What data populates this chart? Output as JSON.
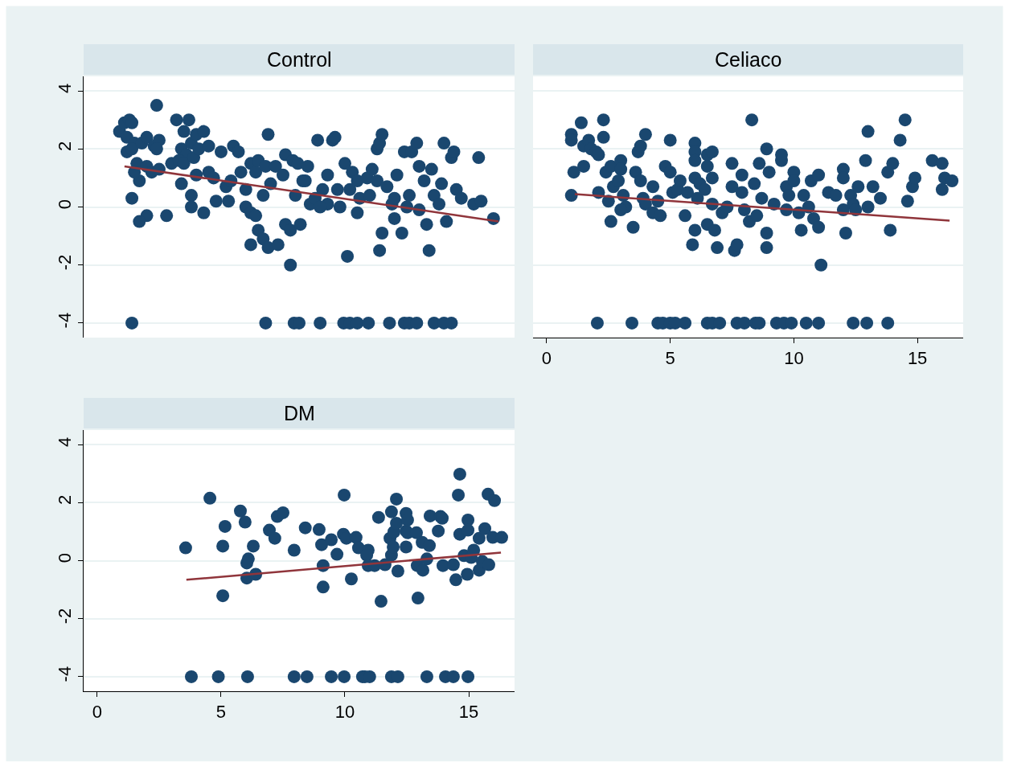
{
  "chart_data": [
    {
      "type": "scatter",
      "title": "Control",
      "grid": "y",
      "tick_labels": "y",
      "xlim": [
        -0.55,
        16.85
      ],
      "ylim": [
        -4.5,
        4.5
      ],
      "xticks": [
        0,
        5,
        10,
        15
      ],
      "yticks": [
        -4,
        -2,
        0,
        2,
        4
      ],
      "series": [
        {
          "color": "#1a476f",
          "marker": "circle",
          "x": [
            0.9,
            1.1,
            1.3,
            1.4,
            1.2,
            1.5,
            1.2,
            1.4,
            1.8,
            1.6,
            1.7,
            1.4,
            1.5,
            2.0,
            1.7,
            2.4,
            2.0,
            2.3,
            2.5,
            2.4,
            2.0,
            2.2,
            2.5,
            2.8,
            3.0,
            3.2,
            3.5,
            3.7,
            3.4,
            3.6,
            3.8,
            4.0,
            3.3,
            3.5,
            3.9,
            4.1,
            4.3,
            4.5,
            3.4,
            3.8,
            3.8,
            4.3,
            4.0,
            4.5,
            4.7,
            4.8,
            5.0,
            5.2,
            5.3,
            5.5,
            5.7,
            5.8,
            5.4,
            6.0,
            6.2,
            6.4,
            6.5,
            6.8,
            6.0,
            6.2,
            6.4,
            6.2,
            6.5,
            6.7,
            6.9,
            6.7,
            6.9,
            7.0,
            7.2,
            7.5,
            7.3,
            7.6,
            7.8,
            7.8,
            7.6,
            7.9,
            8.1,
            8.0,
            8.3,
            8.2,
            8.5,
            8.6,
            8.8,
            8.9,
            9.1,
            9.3,
            9.5,
            9.6,
            9.3,
            9.7,
            9.8,
            10.0,
            10.2,
            10.1,
            10.3,
            10.5,
            10.6,
            10.9,
            11.1,
            11.0,
            11.3,
            11.4,
            11.5,
            11.3,
            11.5,
            11.4,
            11.7,
            11.9,
            12.1,
            12.3,
            12.4,
            12.7,
            12.9,
            12.6,
            13.0,
            13.0,
            13.2,
            13.3,
            13.4,
            13.5,
            13.6,
            13.9,
            14.0,
            14.1,
            14.3,
            14.4,
            14.5,
            14.7,
            15.2,
            15.4,
            15.5,
            16.0,
            12.0,
            10.5,
            9.0,
            8.4,
            12.5,
            12.0,
            13.8,
            1.4,
            6.8,
            7.95,
            8.15,
            9.0,
            9.95,
            10.2,
            10.5,
            10.95,
            11.8,
            12.4,
            12.6,
            12.9,
            13.6,
            14.0,
            14.3
          ],
          "values": [
            2.6,
            2.9,
            3.0,
            2.9,
            2.4,
            2.2,
            1.9,
            2.0,
            2.2,
            1.5,
            0.9,
            0.3,
            1.2,
            -0.3,
            -0.5,
            3.5,
            2.4,
            2.1,
            2.3,
            2.0,
            1.4,
            1.2,
            1.3,
            -0.3,
            1.5,
            3.0,
            2.6,
            3.0,
            2.0,
            1.8,
            2.2,
            2.5,
            1.6,
            1.5,
            1.7,
            2.0,
            2.6,
            2.1,
            0.8,
            0.4,
            0.0,
            -0.2,
            1.1,
            1.2,
            1.0,
            0.2,
            1.9,
            0.7,
            0.2,
            2.1,
            1.9,
            1.2,
            0.9,
            0.6,
            1.5,
            1.2,
            1.6,
            1.4,
            0.0,
            -0.2,
            -0.3,
            -1.3,
            -0.8,
            -1.1,
            -1.4,
            0.4,
            2.5,
            0.8,
            1.4,
            1.1,
            -1.3,
            -0.6,
            -0.8,
            -2.0,
            1.8,
            1.6,
            1.5,
            0.4,
            0.9,
            -0.6,
            1.4,
            0.1,
            0.3,
            2.3,
            0.6,
            1.1,
            2.3,
            2.4,
            0.1,
            0.6,
            0.0,
            1.5,
            0.6,
            -1.7,
            1.2,
            0.9,
            0.3,
            1.0,
            1.3,
            0.4,
            2.0,
            2.2,
            2.5,
            0.9,
            -0.9,
            -1.5,
            0.7,
            0.1,
            1.1,
            -0.9,
            1.9,
            1.9,
            2.2,
            0.4,
            1.4,
            -0.1,
            0.9,
            -0.6,
            -1.5,
            1.3,
            0.4,
            0.8,
            2.2,
            -0.5,
            1.7,
            1.9,
            0.6,
            0.3,
            0.1,
            1.7,
            0.2,
            -0.4,
            0.3,
            -0.2,
            0.0,
            0.9,
            0.0,
            -0.4,
            0.1,
            -4,
            -4,
            -4,
            -4,
            -4,
            -4,
            -4,
            -4,
            -4,
            -4,
            -4,
            -4,
            -4,
            -4,
            -4,
            -4
          ]
        },
        {
          "type": "line",
          "color": "#90353b",
          "x": [
            1.1,
            16.2
          ],
          "values": [
            1.4,
            -0.5
          ]
        }
      ]
    },
    {
      "type": "scatter",
      "title": "Celiaco",
      "grid": "y",
      "tick_labels": "x",
      "xlim": [
        -0.55,
        16.85
      ],
      "ylim": [
        -4.5,
        4.5
      ],
      "xticks": [
        0,
        5,
        10,
        15
      ],
      "yticks": [
        -4,
        -2,
        0,
        2,
        4
      ],
      "series": [
        {
          "color": "#1a476f",
          "marker": "circle",
          "x": [
            1.0,
            1.0,
            1.0,
            1.1,
            1.4,
            1.5,
            1.7,
            1.5,
            1.8,
            2.0,
            2.1,
            2.3,
            2.3,
            2.1,
            2.4,
            2.6,
            2.5,
            2.7,
            2.6,
            3.0,
            3.0,
            2.9,
            3.1,
            3.2,
            3.0,
            3.5,
            3.7,
            3.8,
            3.6,
            3.8,
            3.9,
            4.0,
            4.0,
            4.3,
            4.5,
            4.3,
            4.6,
            4.8,
            5.0,
            5.1,
            5.0,
            5.3,
            5.4,
            5.6,
            5.7,
            5.9,
            6.0,
            6.0,
            6.0,
            6.0,
            6.0,
            6.2,
            6.1,
            6.4,
            6.5,
            6.5,
            6.7,
            6.7,
            6.7,
            6.5,
            6.8,
            6.9,
            7.1,
            7.3,
            7.5,
            7.5,
            7.6,
            7.7,
            7.9,
            7.9,
            8.0,
            8.2,
            8.3,
            8.4,
            8.5,
            8.7,
            8.6,
            8.9,
            8.9,
            8.9,
            9.0,
            9.2,
            9.5,
            9.5,
            9.7,
            9.7,
            9.8,
            10.0,
            10.0,
            10.2,
            10.3,
            10.4,
            10.6,
            10.7,
            10.8,
            11.0,
            11.0,
            11.1,
            11.4,
            11.7,
            12.0,
            12.0,
            12.0,
            12.1,
            12.3,
            12.4,
            12.5,
            12.6,
            12.9,
            13.0,
            13.0,
            13.2,
            13.5,
            13.8,
            14.0,
            13.9,
            14.3,
            14.5,
            14.6,
            14.8,
            14.9,
            15.6,
            16.0,
            16.1,
            16.0,
            16.4,
            2.05,
            3.45,
            4.5,
            4.7,
            5.0,
            5.2,
            5.6,
            6.5,
            6.7,
            7.0,
            7.7,
            8.0,
            8.45,
            8.6,
            9.3,
            9.6,
            9.9,
            10.5,
            11.0,
            12.4,
            12.95,
            13.8
          ],
          "values": [
            2.5,
            2.3,
            0.4,
            1.2,
            2.9,
            2.1,
            2.3,
            1.4,
            2.0,
            1.9,
            1.8,
            3.0,
            2.4,
            0.5,
            1.2,
            1.4,
            0.2,
            0.7,
            -0.5,
            1.6,
            1.3,
            0.9,
            0.4,
            0.0,
            -0.1,
            -0.7,
            1.9,
            2.1,
            1.2,
            0.9,
            0.3,
            0.1,
            2.5,
            0.7,
            0.2,
            -0.2,
            -0.3,
            1.4,
            1.2,
            0.5,
            2.3,
            0.6,
            0.9,
            -0.3,
            0.5,
            -1.3,
            -0.8,
            2.2,
            1.9,
            1.6,
            1.0,
            0.8,
            0.3,
            0.6,
            1.8,
            1.4,
            1.9,
            1.0,
            0.1,
            -0.6,
            -0.8,
            -1.4,
            -0.2,
            0.0,
            1.5,
            0.7,
            -1.5,
            -1.3,
            1.1,
            0.5,
            -0.1,
            -0.5,
            3.0,
            0.8,
            -0.3,
            0.3,
            1.5,
            2.0,
            -0.9,
            -1.4,
            1.2,
            0.1,
            1.6,
            1.8,
            0.7,
            -0.1,
            0.4,
            1.2,
            0.9,
            -0.2,
            -0.8,
            0.4,
            0.0,
            0.9,
            -0.4,
            -0.7,
            1.1,
            -2.0,
            0.5,
            0.4,
            1.3,
            1.0,
            -0.1,
            -0.9,
            0.4,
            0.1,
            -0.1,
            0.7,
            1.6,
            2.6,
            0.0,
            0.7,
            0.3,
            1.2,
            1.5,
            -0.8,
            2.3,
            3.0,
            0.2,
            0.7,
            1.0,
            1.6,
            1.5,
            1.0,
            0.6,
            0.9,
            -4,
            -4,
            -4,
            -4,
            -4,
            -4,
            -4,
            -4,
            -4,
            -4,
            -4,
            -4,
            -4,
            -4,
            -4,
            -4,
            -4,
            -4,
            -4,
            -4,
            -4,
            -4
          ]
        },
        {
          "type": "line",
          "color": "#90353b",
          "x": [
            1.14,
            16.3
          ],
          "values": [
            0.44,
            -0.47
          ]
        }
      ]
    },
    {
      "type": "scatter",
      "title": "DM",
      "grid": "y",
      "xlim": [
        -0.55,
        16.85
      ],
      "ylim": [
        -4.5,
        4.5
      ],
      "xticks": [
        0,
        5,
        10,
        15
      ],
      "yticks": [
        -4,
        -2,
        0,
        2,
        4
      ],
      "series": [
        {
          "color": "#1a476f",
          "marker": "circle",
          "x": [
            3.57,
            4.55,
            5.78,
            5.97,
            5.16,
            5.07,
            5.07,
            6.3,
            6.1,
            6.04,
            6.04,
            6.4,
            6.95,
            7.17,
            7.27,
            7.5,
            7.95,
            8.4,
            8.96,
            9.06,
            9.45,
            9.12,
            9.12,
            9.68,
            9.97,
            9.94,
            10.06,
            10.26,
            10.45,
            10.55,
            10.94,
            10.88,
            10.94,
            11.2,
            11.36,
            11.46,
            11.62,
            11.82,
            11.88,
            11.95,
            11.98,
            11.88,
            12.08,
            12.08,
            12.14,
            12.47,
            12.53,
            12.47,
            12.53,
            12.47,
            12.89,
            12.95,
            12.92,
            13.12,
            13.15,
            13.41,
            13.31,
            13.44,
            13.77,
            13.86,
            13.93,
            13.96,
            14.38,
            14.48,
            14.58,
            14.64,
            14.64,
            14.81,
            14.94,
            14.97,
            14.97,
            15.1,
            15.2,
            15.42,
            15.42,
            15.65,
            15.55,
            15.78,
            15.81,
            16.04,
            15.97,
            16.33,
            3.8,
            4.89,
            6.07,
            7.95,
            8.47,
            9.45,
            9.97,
            10.71,
            10.81,
            11.0,
            11.88,
            12.14,
            13.31,
            14.06,
            14.38,
            14.97
          ],
          "values": [
            0.44,
            2.15,
            1.71,
            1.33,
            1.18,
            0.5,
            -1.21,
            0.5,
            0.06,
            -0.08,
            -0.6,
            -0.47,
            1.05,
            0.77,
            1.52,
            1.65,
            0.36,
            1.13,
            1.07,
            0.55,
            0.72,
            -0.17,
            -0.91,
            0.22,
            2.26,
            0.91,
            0.77,
            -0.63,
            0.8,
            0.44,
            0.36,
            0.19,
            -0.17,
            -0.17,
            1.49,
            -1.4,
            -0.14,
            0.77,
            0.19,
            0.47,
            0.99,
            1.68,
            1.29,
            2.12,
            -0.36,
            1.63,
            1.4,
            1.02,
            0.96,
            0.47,
            0.96,
            -1.29,
            -0.17,
            0.63,
            -0.33,
            0.52,
            0.06,
            1.54,
            1.02,
            1.52,
            1.46,
            -0.17,
            -0.14,
            -0.66,
            2.26,
            2.98,
            0.91,
            0.17,
            -0.47,
            1.4,
            1.05,
            0.11,
            0.36,
            0.77,
            -0.33,
            1.1,
            -0.03,
            2.29,
            -0.14,
            2.07,
            0.8,
            0.8,
            -4,
            -4,
            -4,
            -4,
            -4,
            -4,
            -4,
            -4,
            -4,
            -4,
            -4,
            -4,
            -4,
            -4,
            -4,
            -4
          ]
        },
        {
          "type": "line",
          "color": "#90353b",
          "x": [
            3.6,
            16.3
          ],
          "values": [
            -0.66,
            0.28
          ]
        }
      ]
    }
  ]
}
